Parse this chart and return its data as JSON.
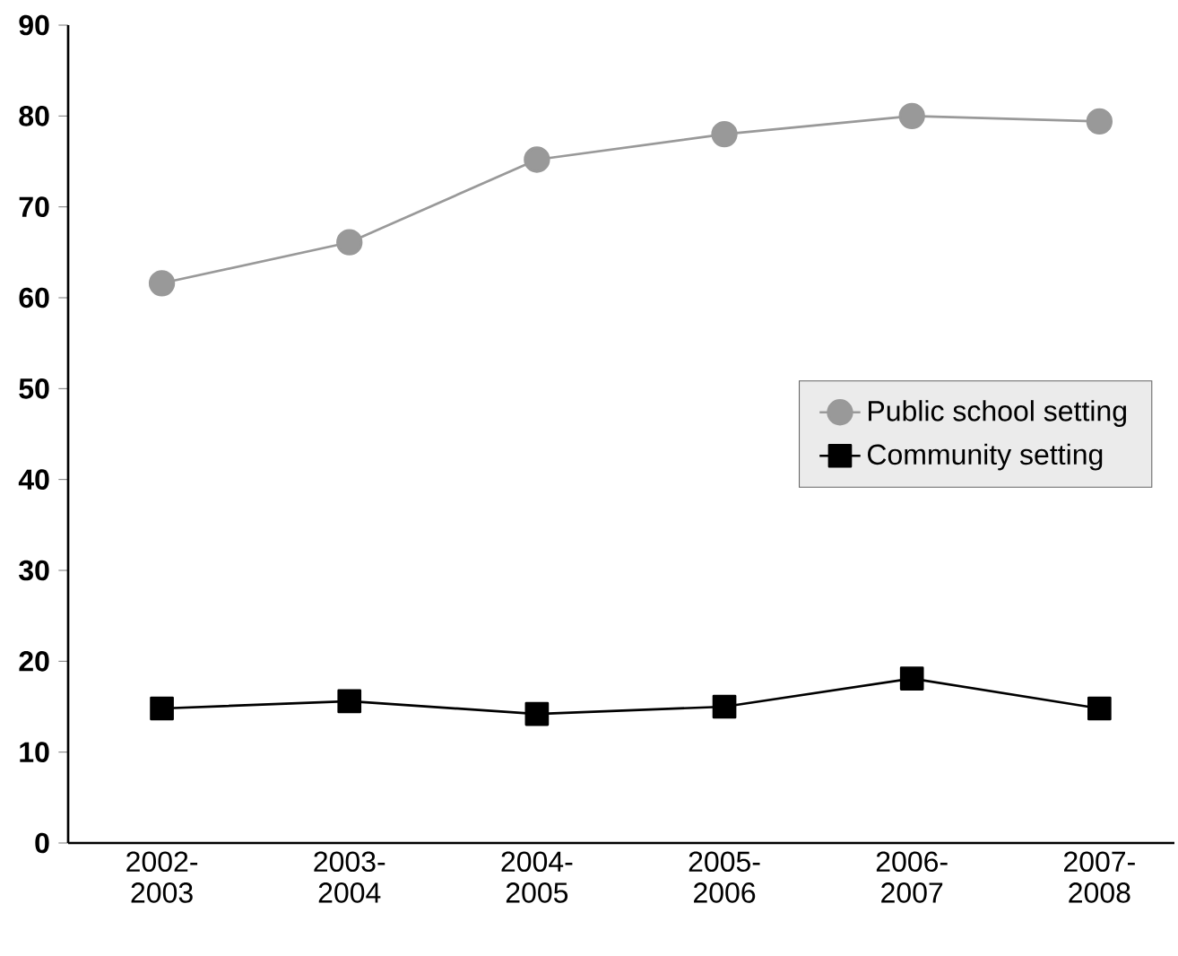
{
  "chart_data": {
    "type": "line",
    "categories": [
      "2002-2003",
      "2003-2004",
      "2004-2005",
      "2005-2006",
      "2006-2007",
      "2007-2008"
    ],
    "series": [
      {
        "name": "Public school setting",
        "color": "#999999",
        "marker": "circle",
        "values": [
          61.6,
          66.1,
          75.2,
          78.0,
          80.0,
          79.4
        ]
      },
      {
        "name": "Community setting",
        "color": "#000000",
        "marker": "square",
        "values": [
          14.8,
          15.6,
          14.2,
          15.0,
          18.1,
          14.8
        ]
      }
    ],
    "ylim": [
      0,
      90
    ],
    "yticks": [
      0,
      10,
      20,
      30,
      40,
      50,
      60,
      70,
      80,
      90
    ],
    "grid": false,
    "legend": "right",
    "line_style": "solid"
  }
}
